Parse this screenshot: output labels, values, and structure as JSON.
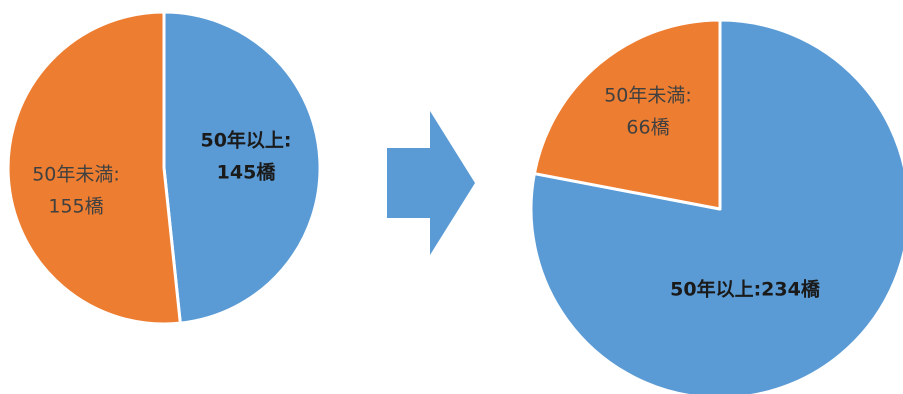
{
  "colors": {
    "over50": "#5B9BD5",
    "under50": "#ED7D31",
    "arrow": "#5B9BD5",
    "label_over": "#1a1a1a",
    "label_under": "#404040"
  },
  "icons": {
    "transition": "right-arrow-icon"
  },
  "chart_data": [
    {
      "type": "pie",
      "title": "",
      "categories": [
        "50年以上",
        "50年未満"
      ],
      "values": [
        145,
        155
      ],
      "unit": "橋",
      "labels": [
        {
          "category": "50年以上",
          "lines": [
            "50年以上:",
            "145橋"
          ]
        },
        {
          "category": "50年未満",
          "lines": [
            "50年未満:",
            "155橋"
          ]
        }
      ]
    },
    {
      "type": "pie",
      "title": "",
      "categories": [
        "50年以上",
        "50年未満"
      ],
      "values": [
        234,
        66
      ],
      "unit": "橋",
      "labels": [
        {
          "category": "50年以上",
          "lines": [
            "50年以上:234橋"
          ]
        },
        {
          "category": "50年未満",
          "lines": [
            "50年未満:",
            "66橋"
          ]
        }
      ]
    }
  ]
}
